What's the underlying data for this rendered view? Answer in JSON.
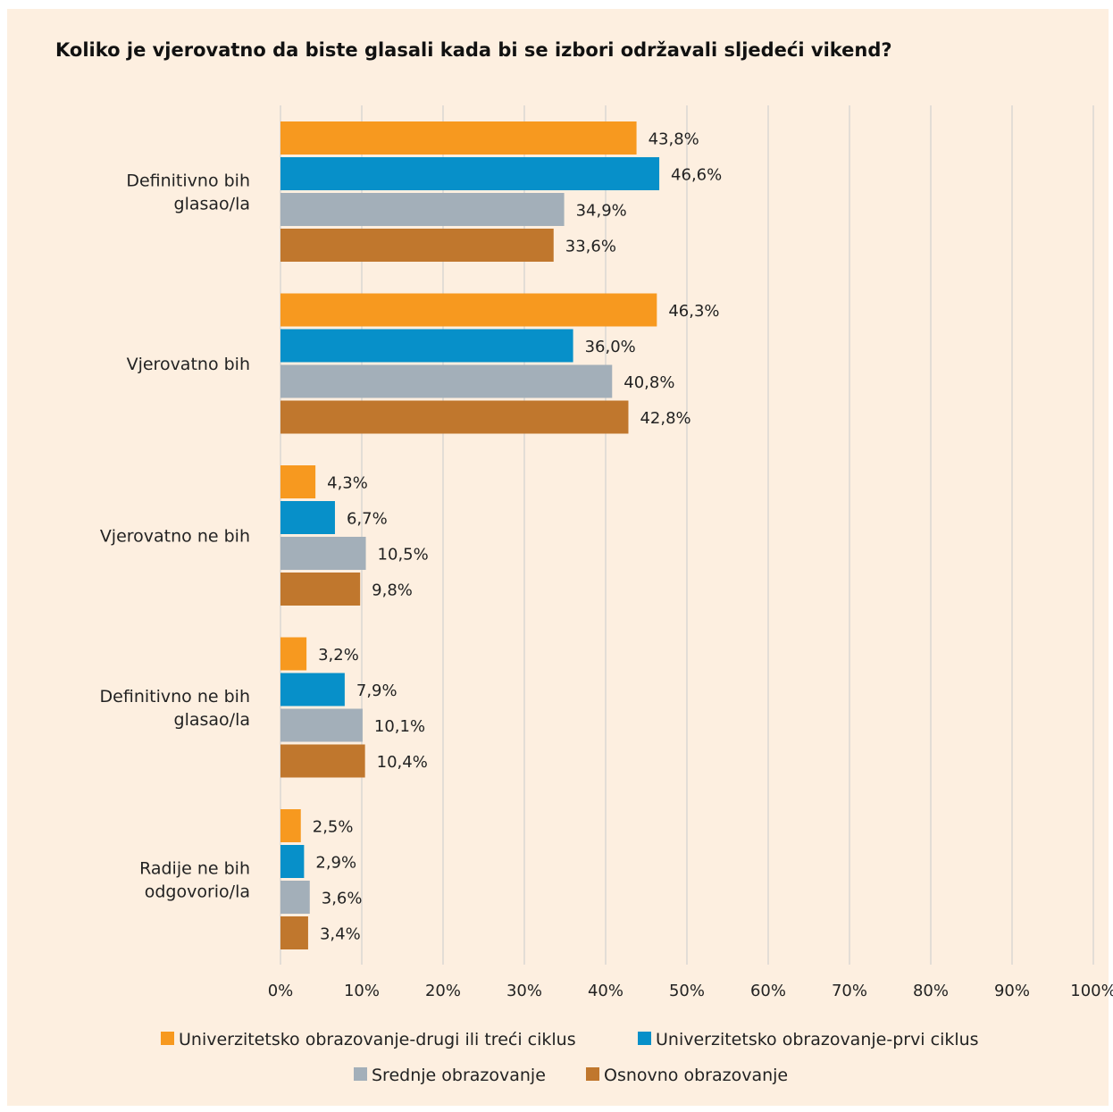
{
  "chart_data": {
    "type": "bar",
    "orientation": "horizontal",
    "title": "Koliko je vjerovatno da biste glasali kada bi se izbori održavali sljedeći vikend?",
    "categories": [
      [
        "Definitivno bih",
        "glasao/la"
      ],
      [
        "Vjerovatno bih"
      ],
      [
        "Vjerovatno ne bih"
      ],
      [
        "Definitivno ne bih",
        "glasao/la"
      ],
      [
        "Radije ne bih",
        "odgovorio/la"
      ]
    ],
    "series": [
      {
        "name": "Univerzitetsko obrazovanje-drugi ili treći ciklus",
        "color": "#f7991f",
        "values": [
          43.8,
          46.3,
          4.3,
          3.2,
          2.5
        ],
        "labels": [
          "43,8%",
          "46,3%",
          "4,3%",
          "3,2%",
          "2,5%"
        ]
      },
      {
        "name": "Univerzitetsko obrazovanje-prvi ciklus",
        "color": "#0790c9",
        "values": [
          46.6,
          36.0,
          6.7,
          7.9,
          2.9
        ],
        "labels": [
          "46,6%",
          "36,0%",
          "6,7%",
          "7,9%",
          "2,9%"
        ]
      },
      {
        "name": "Srednje obrazovanje",
        "color": "#a3afb9",
        "values": [
          34.9,
          40.8,
          10.5,
          10.1,
          3.6
        ],
        "labels": [
          "34,9%",
          "40,8%",
          "10,5%",
          "10,1%",
          "3,6%"
        ]
      },
      {
        "name": "Osnovno obrazovanje",
        "color": "#c0772d",
        "values": [
          33.6,
          42.8,
          9.8,
          10.4,
          3.4
        ],
        "labels": [
          "33,6%",
          "42,8%",
          "9,8%",
          "10,4%",
          "3,4%"
        ]
      }
    ],
    "xlim": [
      0,
      100
    ],
    "xticks": [
      "0%",
      "10%",
      "20%",
      "30%",
      "40%",
      "50%",
      "60%",
      "70%",
      "80%",
      "90%",
      "100%"
    ],
    "grid": true,
    "legend_position": "bottom"
  }
}
